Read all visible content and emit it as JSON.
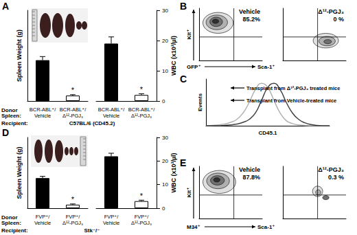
{
  "chart_data": [
    {
      "panel": "A",
      "type": "bar",
      "ylabel": "Spleen Weight (g)",
      "categories": [
        "BCR-ABL⁺/Vehicle",
        "BCR-ABL⁺/Δ¹²-PGJ₃"
      ],
      "values": [
        0.45,
        0.06
      ],
      "errors": [
        0.04,
        0.01
      ],
      "colors": [
        "#000000",
        "#ffffff"
      ],
      "ylim": [
        0,
        1
      ],
      "tick_labels": "x",
      "grid": false,
      "annotations": [
        {
          "text": "*",
          "category": "BCR-ABL⁺/Δ¹²-PGJ₃"
        }
      ],
      "row_labels": {
        "donor": "Donor Spleen:",
        "recipient": "Recipient:"
      },
      "recipient": "C57BL/6 (CD45.2)"
    },
    {
      "type": "bar",
      "y2label": "WBC (x10³/µl)",
      "categories": [
        "BCR-ABL⁺/Vehicle",
        "BCR-ABL⁺/Δ¹²-PGJ₃"
      ],
      "values": [
        19,
        2
      ],
      "errors": [
        2.2,
        0.4
      ],
      "colors": [
        "#000000",
        "#ffffff"
      ],
      "y2lim": [
        0,
        30
      ],
      "y2ticks": [
        0,
        10,
        20,
        30
      ],
      "grid": false,
      "annotations": [
        {
          "text": "*",
          "category": "BCR-ABL⁺/Δ¹²-PGJ₃"
        }
      ]
    },
    {
      "panel": "D",
      "type": "bar",
      "ylabel": "Spleen Weight (g)",
      "categories": [
        "FVP⁺/Vehicle",
        "FVP⁺/Δ¹²-PGJ₃"
      ],
      "values": [
        0.85,
        0.1
      ],
      "errors": [
        0.05,
        0.02
      ],
      "colors": [
        "#000000",
        "#ffffff"
      ],
      "ylim": [
        0,
        2
      ],
      "tick_labels": "x",
      "grid": false,
      "annotations": [
        {
          "text": "*",
          "category": "FVP⁺/Δ¹²-PGJ₃"
        }
      ],
      "row_labels": {
        "donor": "Donor Spleen:",
        "recipient": "Recipient:"
      },
      "recipient": "Stk⁻/⁻"
    },
    {
      "type": "bar",
      "y2label": "WBC (x10³/µl)",
      "categories": [
        "FVP⁺/Vehicle",
        "FVP⁺/Δ¹²-PGJ₃"
      ],
      "values": [
        22,
        3
      ],
      "errors": [
        1.3,
        0.4
      ],
      "colors": [
        "#000000",
        "#ffffff"
      ],
      "y2lim": [
        0,
        30
      ],
      "y2ticks": [
        0,
        10,
        20,
        30
      ],
      "grid": false,
      "annotations": [
        {
          "text": "*",
          "category": "FVP⁺/Δ¹²-PGJ₃"
        }
      ]
    },
    {
      "panel": "B",
      "type": "contour",
      "title": "Vehicle",
      "percent_label": "85.2%",
      "ylabel": "Kit⁺",
      "gate_label": "GFP⁺",
      "xlabel": "Sca-1⁺",
      "xlim": [
        0,
        100
      ],
      "ylim": [
        0,
        100
      ],
      "tick_labels": false,
      "gates": {
        "x": 55,
        "y": 45
      },
      "contours": [
        [
          30,
          72,
          24,
          20
        ],
        [
          28,
          73,
          17,
          14
        ],
        [
          27,
          74,
          10,
          9
        ],
        [
          26,
          75,
          5,
          4
        ]
      ]
    },
    {
      "type": "contour",
      "title": "Δ¹²-PGJ₃",
      "percent_label": "0 %",
      "xlim": [
        0,
        100
      ],
      "ylim": [
        0,
        100
      ],
      "tick_labels": false,
      "gates": {
        "x": 55,
        "y": 45
      },
      "contours": [
        [
          68,
          38,
          20,
          14
        ],
        [
          70,
          37,
          13,
          9
        ],
        [
          71,
          36,
          6,
          4
        ]
      ]
    },
    {
      "panel": "C",
      "type": "line",
      "xlabel": "CD45.1",
      "ylabel": "Events",
      "x": [
        0,
        5,
        10,
        15,
        20,
        25,
        30,
        35,
        40,
        45,
        50,
        55,
        60,
        65,
        70,
        75,
        80,
        85,
        90,
        95,
        100
      ],
      "xlim": [
        0,
        100
      ],
      "ylim": [
        0,
        110
      ],
      "tick_labels": false,
      "series": [
        {
          "name": "Transplant from Δ¹²-PGJ₃ treated mice",
          "color": "#b0b0b0",
          "values": [
            0,
            1,
            2,
            4,
            8,
            15,
            30,
            55,
            85,
            100,
            90,
            60,
            30,
            12,
            5,
            2,
            1,
            0,
            0,
            0,
            0
          ]
        },
        {
          "name": "Transplant from Vehicle-treated mice",
          "color": "#404040",
          "values": [
            0,
            0,
            0,
            1,
            2,
            4,
            8,
            15,
            30,
            60,
            90,
            100,
            85,
            55,
            30,
            15,
            7,
            3,
            1,
            0,
            0
          ]
        }
      ]
    },
    {
      "panel": "E",
      "type": "contour",
      "title": "Vehicle",
      "percent_label": "87.8%",
      "ylabel": "Kit⁺",
      "gate_label": "M34⁺",
      "xlabel": "Sca-1⁺",
      "xlim": [
        0,
        100
      ],
      "ylim": [
        0,
        100
      ],
      "tick_labels": false,
      "gates": {
        "x": 55,
        "y": 45
      },
      "contours": [
        [
          32,
          70,
          26,
          22
        ],
        [
          30,
          72,
          18,
          15
        ],
        [
          29,
          73,
          11,
          9
        ],
        [
          28,
          74,
          5,
          4
        ]
      ]
    },
    {
      "type": "contour",
      "title": "Δ¹²-PGJ₃",
      "percent_label": "0.3 %",
      "xlim": [
        0,
        100
      ],
      "ylim": [
        0,
        100
      ],
      "tick_labels": false,
      "gates": {
        "x": 55,
        "y": 45
      },
      "contours": [
        [
          55,
          52,
          8,
          10
        ],
        [
          56,
          50,
          4,
          5
        ],
        [
          68,
          40,
          5,
          4
        ]
      ]
    }
  ]
}
